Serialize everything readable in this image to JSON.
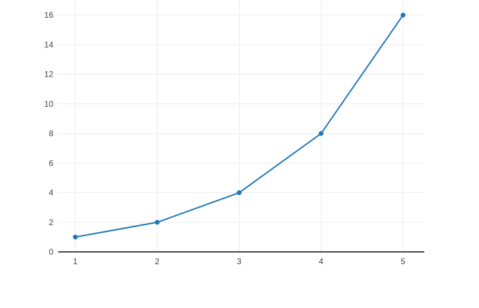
{
  "chart_data": {
    "type": "line",
    "title": "",
    "xlabel": "",
    "ylabel": "",
    "x": [
      1,
      2,
      3,
      4,
      5
    ],
    "series": [
      {
        "values": [
          1,
          2,
          4,
          8,
          16
        ]
      }
    ],
    "x_ticks": [
      "1",
      "2",
      "3",
      "4",
      "5"
    ],
    "x_tick_values": [
      1,
      2,
      3,
      4,
      5
    ],
    "y_ticks": [
      "0",
      "2",
      "4",
      "6",
      "8",
      "10",
      "12",
      "14",
      "16"
    ],
    "y_tick_values": [
      0,
      2,
      4,
      6,
      8,
      10,
      12,
      14,
      16
    ],
    "xlim": [
      0.791,
      5.259
    ],
    "ylim": [
      0,
      17.02
    ],
    "grid": true,
    "legend_visible": false,
    "marker_style": "circle",
    "colors": {
      "line": "#1f77b4",
      "marker": "#1f77b4",
      "grid": "#ebebeb",
      "zeroline": "#444444",
      "tick_label": "#444444",
      "background": "#ffffff"
    }
  }
}
